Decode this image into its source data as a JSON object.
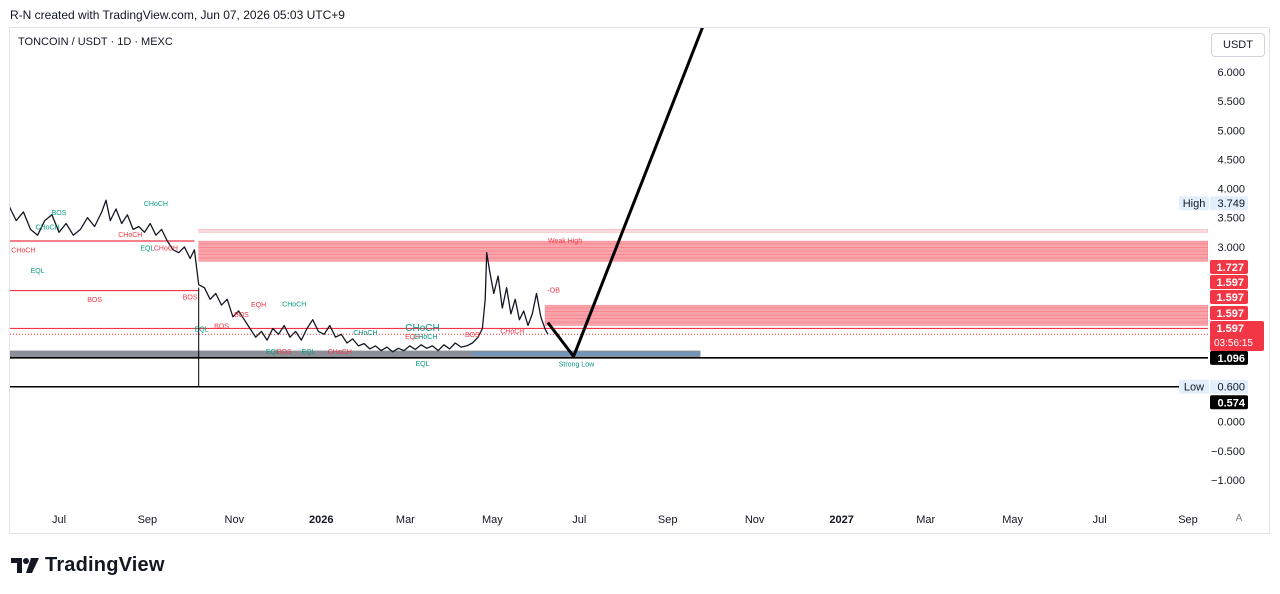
{
  "header": {
    "credit": "R-N created with TradingView.com, Jun 07, 2026 05:03 UTC+9"
  },
  "chart": {
    "symbol": "TONCOIN / USDT · 1D · MEXC",
    "currency": "USDT",
    "auto_scale": "A"
  },
  "brand": {
    "name": "TradingView",
    "logo_icon": "tradingview-logo-icon"
  },
  "colors": {
    "bearish_zone": "#f23645",
    "bullish_zone": "#089981",
    "discount_zone": "#787b86",
    "projection": "#000000",
    "choch_label": "#089981",
    "bos_label": "#f23645"
  },
  "chart_data": {
    "type": "line",
    "y_range": [
      -1.25,
      6.25
    ],
    "y_ticks": [
      "6.000",
      "5.500",
      "5.000",
      "4.500",
      "4.000",
      "3.500",
      "3.000",
      "1.096",
      "0.600",
      "0.000",
      "−0.500",
      "−1.000"
    ],
    "y_tick_values": [
      6.0,
      5.5,
      5.0,
      4.5,
      4.0,
      3.5,
      3.0,
      1.096,
      0.6,
      0.0,
      -0.5,
      -1.0
    ],
    "x_ticks": [
      "Jul",
      "Sep",
      "Nov",
      "2026",
      "Mar",
      "May",
      "Jul",
      "Sep",
      "Nov",
      "2027",
      "Mar",
      "May",
      "Jul",
      "Sep"
    ],
    "x_tick_days": [
      0,
      62,
      123,
      184,
      243,
      304,
      365,
      427,
      488,
      549,
      608,
      669,
      730,
      792
    ],
    "price_badges": [
      {
        "text": "1.727",
        "value": 1.727,
        "style": "red"
      },
      {
        "text": "1.597",
        "value": 1.597,
        "style": "red"
      },
      {
        "text": "1.597",
        "value": 1.597,
        "style": "red"
      },
      {
        "text": "1.597",
        "value": 1.597,
        "style": "red"
      },
      {
        "text": "1.597",
        "value": 1.597,
        "style": "red"
      },
      {
        "text": "03:56:15",
        "value": 1.597,
        "style": "countdown"
      },
      {
        "text": "1.096",
        "value": 1.096,
        "style": "black"
      },
      {
        "text": "0.574",
        "value": 0.574,
        "style": "black"
      }
    ],
    "high_marker": {
      "label": "High",
      "value": "3.749"
    },
    "low_marker": {
      "label": "Low",
      "value": "0.600"
    },
    "price_path": [
      [
        -35,
        3.7
      ],
      [
        -30,
        3.45
      ],
      [
        -25,
        3.6
      ],
      [
        -20,
        3.3
      ],
      [
        -15,
        3.2
      ],
      [
        -10,
        3.45
      ],
      [
        -5,
        3.55
      ],
      [
        0,
        3.25
      ],
      [
        5,
        3.4
      ],
      [
        10,
        3.2
      ],
      [
        15,
        3.3
      ],
      [
        20,
        3.5
      ],
      [
        25,
        3.35
      ],
      [
        30,
        3.6
      ],
      [
        33,
        3.8
      ],
      [
        36,
        3.45
      ],
      [
        40,
        3.65
      ],
      [
        44,
        3.4
      ],
      [
        48,
        3.55
      ],
      [
        52,
        3.3
      ],
      [
        56,
        3.35
      ],
      [
        60,
        3.25
      ],
      [
        64,
        3.4
      ],
      [
        68,
        3.2
      ],
      [
        72,
        3.3
      ],
      [
        76,
        3.1
      ],
      [
        80,
        2.95
      ],
      [
        84,
        2.9
      ],
      [
        88,
        3.0
      ],
      [
        92,
        2.8
      ],
      [
        95,
        2.95
      ],
      [
        98,
        2.35
      ],
      [
        102,
        2.3
      ],
      [
        106,
        2.1
      ],
      [
        110,
        2.2
      ],
      [
        114,
        2.0
      ],
      [
        118,
        2.1
      ],
      [
        122,
        1.8
      ],
      [
        126,
        1.9
      ],
      [
        130,
        1.75
      ],
      [
        134,
        1.6
      ],
      [
        138,
        1.45
      ],
      [
        142,
        1.55
      ],
      [
        146,
        1.4
      ],
      [
        150,
        1.6
      ],
      [
        154,
        1.5
      ],
      [
        158,
        1.65
      ],
      [
        162,
        1.45
      ],
      [
        166,
        1.55
      ],
      [
        170,
        1.4
      ],
      [
        174,
        1.6
      ],
      [
        178,
        1.75
      ],
      [
        182,
        1.55
      ],
      [
        186,
        1.5
      ],
      [
        190,
        1.65
      ],
      [
        194,
        1.45
      ],
      [
        198,
        1.5
      ],
      [
        202,
        1.35
      ],
      [
        206,
        1.42
      ],
      [
        210,
        1.3
      ],
      [
        214,
        1.34
      ],
      [
        218,
        1.25
      ],
      [
        222,
        1.3
      ],
      [
        226,
        1.22
      ],
      [
        230,
        1.28
      ],
      [
        234,
        1.2
      ],
      [
        238,
        1.26
      ],
      [
        242,
        1.22
      ],
      [
        246,
        1.3
      ],
      [
        250,
        1.24
      ],
      [
        254,
        1.32
      ],
      [
        258,
        1.26
      ],
      [
        262,
        1.3
      ],
      [
        266,
        1.22
      ],
      [
        270,
        1.32
      ],
      [
        274,
        1.25
      ],
      [
        278,
        1.35
      ],
      [
        282,
        1.28
      ],
      [
        286,
        1.3
      ],
      [
        290,
        1.35
      ],
      [
        294,
        1.45
      ],
      [
        297,
        1.6
      ],
      [
        299,
        2.1
      ],
      [
        300,
        2.9
      ],
      [
        302,
        2.6
      ],
      [
        305,
        2.2
      ],
      [
        308,
        2.5
      ],
      [
        311,
        1.95
      ],
      [
        314,
        2.3
      ],
      [
        317,
        1.85
      ],
      [
        320,
        2.1
      ],
      [
        323,
        1.75
      ],
      [
        326,
        1.9
      ],
      [
        329,
        1.65
      ],
      [
        332,
        1.85
      ],
      [
        335,
        2.2
      ],
      [
        338,
        1.8
      ],
      [
        341,
        1.59
      ],
      [
        343,
        1.5
      ]
    ],
    "projection": [
      [
        343,
        1.7
      ],
      [
        361,
        1.12
      ],
      [
        452,
        6.8
      ]
    ],
    "horizontal_lines": [
      {
        "name": "bos-level-1",
        "y": 3.1,
        "x1": -35,
        "x2": 95,
        "style": "red-solid"
      },
      {
        "name": "bos-level-2",
        "y": 2.25,
        "x1": -35,
        "x2": 98,
        "style": "red-solid"
      },
      {
        "name": "current-price-line",
        "y": 1.6,
        "x1": -35,
        "x2": 830,
        "style": "red-solid"
      },
      {
        "name": "price-dotted-line",
        "y": 1.5,
        "x1": -35,
        "x2": 830,
        "style": "red-dotted"
      },
      {
        "name": "strong-low-line",
        "y": 1.096,
        "x1": -35,
        "x2": 830,
        "style": "black-solid"
      },
      {
        "name": "low-line",
        "y": 0.6,
        "x1": -35,
        "x2": 830,
        "style": "black-solid"
      }
    ],
    "zones": [
      {
        "name": "weak-high-zone",
        "y1": 2.75,
        "y2": 3.1,
        "x1": 98,
        "x2": 830,
        "color": "red"
      },
      {
        "name": "weak-high-band",
        "y1": 3.25,
        "y2": 3.3,
        "x1": 98,
        "x2": 830,
        "color": "red-light"
      },
      {
        "name": "ob-zone",
        "y1": 1.65,
        "y2": 2.0,
        "x1": 341,
        "x2": 830,
        "color": "red"
      },
      {
        "name": "grey-box-zone",
        "y1": 1.1,
        "y2": 1.22,
        "x1": -35,
        "x2": 450,
        "color": "grey"
      },
      {
        "name": "blue-ob-zone",
        "y1": 1.13,
        "y2": 1.2,
        "x1": 290,
        "x2": 450,
        "color": "blue"
      }
    ],
    "annotations": [
      {
        "text": "CHoCH",
        "day": -25,
        "y": 2.9,
        "color": "red"
      },
      {
        "text": "EQL",
        "day": -15,
        "y": 2.55,
        "color": "green"
      },
      {
        "text": "CHoCH",
        "day": -8,
        "y": 3.3,
        "color": "green"
      },
      {
        "text": "BOS",
        "day": 0,
        "y": 3.55,
        "color": "green"
      },
      {
        "text": "BOS",
        "day": 25,
        "y": 2.05,
        "color": "red"
      },
      {
        "text": "CHoCH",
        "day": 50,
        "y": 3.17,
        "color": "red"
      },
      {
        "text": "CHoCH",
        "day": 68,
        "y": 3.7,
        "color": "green"
      },
      {
        "text": "EQL",
        "day": 62,
        "y": 2.94,
        "color": "green"
      },
      {
        "text": "CHoCH",
        "day": 75,
        "y": 2.94,
        "color": "red"
      },
      {
        "text": "BOS",
        "day": 92,
        "y": 2.1,
        "color": "red"
      },
      {
        "text": "EQL",
        "day": 100,
        "y": 1.55,
        "color": "green"
      },
      {
        "text": "BOS",
        "day": 114,
        "y": 1.6,
        "color": "red"
      },
      {
        "text": "BOS",
        "day": 128,
        "y": 1.8,
        "color": "red"
      },
      {
        "text": "EQH",
        "day": 140,
        "y": 1.97,
        "color": "red"
      },
      {
        "text": "CHoCH",
        "day": 165,
        "y": 1.98,
        "color": "green"
      },
      {
        "text": "EQL",
        "day": 150,
        "y": 1.16,
        "color": "green"
      },
      {
        "text": "BOS",
        "day": 158,
        "y": 1.16,
        "color": "red"
      },
      {
        "text": "EQL",
        "day": 175,
        "y": 1.16,
        "color": "green"
      },
      {
        "text": "CHoCH",
        "day": 197,
        "y": 1.16,
        "color": "red"
      },
      {
        "text": "CHoCH",
        "day": 215,
        "y": 1.49,
        "color": "green"
      },
      {
        "text": "EQH",
        "day": 248,
        "y": 1.42,
        "color": "red"
      },
      {
        "text": "CHoCH",
        "day": 257,
        "y": 1.42,
        "color": "green"
      },
      {
        "text": "CHoCH",
        "day": 255,
        "y": 1.56,
        "color": "green"
      },
      {
        "text": "BOS",
        "day": 290,
        "y": 1.45,
        "color": "red"
      },
      {
        "text": "CHoCH",
        "day": 318,
        "y": 1.51,
        "color": "red"
      },
      {
        "text": "EQL",
        "day": 255,
        "y": 0.96,
        "color": "green"
      },
      {
        "text": "Weak High",
        "day": 355,
        "y": 3.07,
        "color": "red"
      },
      {
        "text": "-OB",
        "day": 347,
        "y": 2.22,
        "color": "red"
      },
      {
        "text": "Strong Low",
        "day": 363,
        "y": 0.95,
        "color": "green"
      }
    ]
  }
}
